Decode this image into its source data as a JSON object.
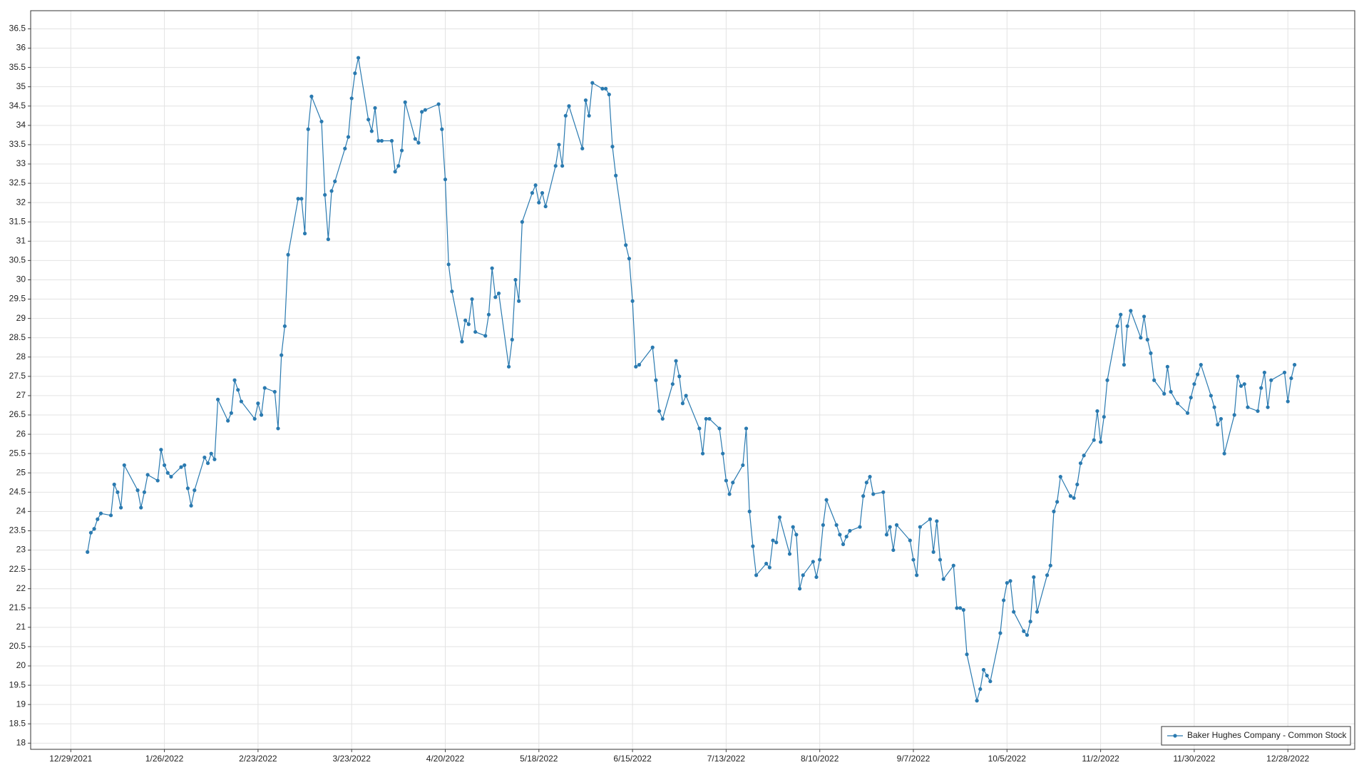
{
  "chart_data": {
    "type": "line",
    "series": [
      {
        "name": "Baker Hughes Company - Common Stock",
        "color": "#2a7ab0",
        "x": [
          "1/3/2022",
          "1/4/2022",
          "1/5/2022",
          "1/6/2022",
          "1/7/2022",
          "1/10/2022",
          "1/11/2022",
          "1/12/2022",
          "1/13/2022",
          "1/14/2022",
          "1/18/2022",
          "1/19/2022",
          "1/20/2022",
          "1/21/2022",
          "1/24/2022",
          "1/25/2022",
          "1/26/2022",
          "1/27/2022",
          "1/28/2022",
          "1/31/2022",
          "2/1/2022",
          "2/2/2022",
          "2/3/2022",
          "2/4/2022",
          "2/7/2022",
          "2/8/2022",
          "2/9/2022",
          "2/10/2022",
          "2/11/2022",
          "2/14/2022",
          "2/15/2022",
          "2/16/2022",
          "2/17/2022",
          "2/18/2022",
          "2/22/2022",
          "2/23/2022",
          "2/24/2022",
          "2/25/2022",
          "2/28/2022",
          "3/1/2022",
          "3/2/2022",
          "3/3/2022",
          "3/4/2022",
          "3/7/2022",
          "3/8/2022",
          "3/9/2022",
          "3/10/2022",
          "3/11/2022",
          "3/14/2022",
          "3/15/2022",
          "3/16/2022",
          "3/17/2022",
          "3/18/2022",
          "3/21/2022",
          "3/22/2022",
          "3/23/2022",
          "3/24/2022",
          "3/25/2022",
          "3/28/2022",
          "3/29/2022",
          "3/30/2022",
          "3/31/2022",
          "4/1/2022",
          "4/4/2022",
          "4/5/2022",
          "4/6/2022",
          "4/7/2022",
          "4/8/2022",
          "4/11/2022",
          "4/12/2022",
          "4/13/2022",
          "4/14/2022",
          "4/18/2022",
          "4/19/2022",
          "4/20/2022",
          "4/21/2022",
          "4/22/2022",
          "4/25/2022",
          "4/26/2022",
          "4/27/2022",
          "4/28/2022",
          "4/29/2022",
          "5/2/2022",
          "5/3/2022",
          "5/4/2022",
          "5/5/2022",
          "5/6/2022",
          "5/9/2022",
          "5/10/2022",
          "5/11/2022",
          "5/12/2022",
          "5/13/2022",
          "5/16/2022",
          "5/17/2022",
          "5/18/2022",
          "5/19/2022",
          "5/20/2022",
          "5/23/2022",
          "5/24/2022",
          "5/25/2022",
          "5/26/2022",
          "5/27/2022",
          "5/31/2022",
          "6/1/2022",
          "6/2/2022",
          "6/3/2022",
          "6/6/2022",
          "6/7/2022",
          "6/8/2022",
          "6/9/2022",
          "6/10/2022",
          "6/13/2022",
          "6/14/2022",
          "6/15/2022",
          "6/16/2022",
          "6/17/2022",
          "6/21/2022",
          "6/22/2022",
          "6/23/2022",
          "6/24/2022",
          "6/27/2022",
          "6/28/2022",
          "6/29/2022",
          "6/30/2022",
          "7/1/2022",
          "7/5/2022",
          "7/6/2022",
          "7/7/2022",
          "7/8/2022",
          "7/11/2022",
          "7/12/2022",
          "7/13/2022",
          "7/14/2022",
          "7/15/2022",
          "7/18/2022",
          "7/19/2022",
          "7/20/2022",
          "7/21/2022",
          "7/22/2022",
          "7/25/2022",
          "7/26/2022",
          "7/27/2022",
          "7/28/2022",
          "7/29/2022",
          "8/1/2022",
          "8/2/2022",
          "8/3/2022",
          "8/4/2022",
          "8/5/2022",
          "8/8/2022",
          "8/9/2022",
          "8/10/2022",
          "8/11/2022",
          "8/12/2022",
          "8/15/2022",
          "8/16/2022",
          "8/17/2022",
          "8/18/2022",
          "8/19/2022",
          "8/22/2022",
          "8/23/2022",
          "8/24/2022",
          "8/25/2022",
          "8/26/2022",
          "8/29/2022",
          "8/30/2022",
          "8/31/2022",
          "9/1/2022",
          "9/2/2022",
          "9/6/2022",
          "9/7/2022",
          "9/8/2022",
          "9/9/2022",
          "9/12/2022",
          "9/13/2022",
          "9/14/2022",
          "9/15/2022",
          "9/16/2022",
          "9/19/2022",
          "9/20/2022",
          "9/21/2022",
          "9/22/2022",
          "9/23/2022",
          "9/26/2022",
          "9/27/2022",
          "9/28/2022",
          "9/29/2022",
          "9/30/2022",
          "10/3/2022",
          "10/4/2022",
          "10/5/2022",
          "10/6/2022",
          "10/7/2022",
          "10/10/2022",
          "10/11/2022",
          "10/12/2022",
          "10/13/2022",
          "10/14/2022",
          "10/17/2022",
          "10/18/2022",
          "10/19/2022",
          "10/20/2022",
          "10/21/2022",
          "10/24/2022",
          "10/25/2022",
          "10/26/2022",
          "10/27/2022",
          "10/28/2022",
          "10/31/2022",
          "11/1/2022",
          "11/2/2022",
          "11/3/2022",
          "11/4/2022",
          "11/7/2022",
          "11/8/2022",
          "11/9/2022",
          "11/10/2022",
          "11/11/2022",
          "11/14/2022",
          "11/15/2022",
          "11/16/2022",
          "11/17/2022",
          "11/18/2022",
          "11/21/2022",
          "11/22/2022",
          "11/23/2022",
          "11/25/2022",
          "11/28/2022",
          "11/29/2022",
          "11/30/2022",
          "12/1/2022",
          "12/2/2022",
          "12/5/2022",
          "12/6/2022",
          "12/7/2022",
          "12/8/2022",
          "12/9/2022",
          "12/12/2022",
          "12/13/2022",
          "12/14/2022",
          "12/15/2022",
          "12/16/2022",
          "12/19/2022",
          "12/20/2022",
          "12/21/2022",
          "12/22/2022",
          "12/23/2022",
          "12/27/2022",
          "12/28/2022",
          "12/29/2022",
          "12/30/2022"
        ],
        "values": [
          22.95,
          23.45,
          23.55,
          23.8,
          23.95,
          23.9,
          24.7,
          24.5,
          24.1,
          25.2,
          24.55,
          24.1,
          24.5,
          24.95,
          24.8,
          25.6,
          25.2,
          25.0,
          24.9,
          25.15,
          25.2,
          24.6,
          24.15,
          24.55,
          25.4,
          25.25,
          25.5,
          25.35,
          26.9,
          26.35,
          26.55,
          27.4,
          27.15,
          26.85,
          26.4,
          26.8,
          26.5,
          27.2,
          27.1,
          26.15,
          28.05,
          28.8,
          30.65,
          32.1,
          32.1,
          31.2,
          33.9,
          34.75,
          34.1,
          32.2,
          31.05,
          32.3,
          32.55,
          33.4,
          33.7,
          34.7,
          35.35,
          35.75,
          34.15,
          33.85,
          34.45,
          33.6,
          33.6,
          33.6,
          32.8,
          32.95,
          33.35,
          34.6,
          33.65,
          33.55,
          34.35,
          34.4,
          34.55,
          33.9,
          32.6,
          30.4,
          29.7,
          28.4,
          28.95,
          28.85,
          29.5,
          28.65,
          28.55,
          29.1,
          30.3,
          29.55,
          29.65,
          27.75,
          28.45,
          30.0,
          29.45,
          31.5,
          32.25,
          32.45,
          32.0,
          32.25,
          31.9,
          32.95,
          33.5,
          32.95,
          34.25,
          34.5,
          33.4,
          34.65,
          34.25,
          35.1,
          34.95,
          34.95,
          34.8,
          33.45,
          32.7,
          30.9,
          30.55,
          29.45,
          27.75,
          27.8,
          28.25,
          27.4,
          26.6,
          26.4,
          27.3,
          27.9,
          27.5,
          26.8,
          27.0,
          26.15,
          25.5,
          26.4,
          26.4,
          26.15,
          25.5,
          24.8,
          24.45,
          24.75,
          25.2,
          26.15,
          24.0,
          23.1,
          22.35,
          22.65,
          22.55,
          23.25,
          23.2,
          23.85,
          22.9,
          23.6,
          23.4,
          22.0,
          22.35,
          22.7,
          22.3,
          22.75,
          23.65,
          24.3,
          23.65,
          23.4,
          23.15,
          23.35,
          23.5,
          23.6,
          24.4,
          24.75,
          24.9,
          24.45,
          24.5,
          23.4,
          23.6,
          23.0,
          23.65,
          23.25,
          22.75,
          22.35,
          23.6,
          23.8,
          22.95,
          23.75,
          22.75,
          22.25,
          22.6,
          21.5,
          21.5,
          21.45,
          20.3,
          19.1,
          19.4,
          19.9,
          19.75,
          19.6,
          20.85,
          21.7,
          22.15,
          22.2,
          21.4,
          20.9,
          20.8,
          21.15,
          22.3,
          21.4,
          22.35,
          22.6,
          24.0,
          24.25,
          24.9,
          24.4,
          24.35,
          24.7,
          25.25,
          25.45,
          25.85,
          26.6,
          25.8,
          26.45,
          27.4,
          28.8,
          29.1,
          27.8,
          28.8,
          29.2,
          28.5,
          29.05,
          28.45,
          28.1,
          27.4,
          27.05,
          27.75,
          27.1,
          26.8,
          26.55,
          26.95,
          27.3,
          27.55,
          27.8,
          27.0,
          26.7,
          26.25,
          26.4,
          25.5,
          26.5,
          27.5,
          27.25,
          27.3,
          26.7,
          26.6,
          27.2,
          27.6,
          26.7,
          27.4,
          27.6,
          26.85,
          27.45,
          27.8
        ]
      }
    ],
    "xlim": [
      "12/17/2021",
      "1/17/2023"
    ],
    "xticks": [
      "12/29/2021",
      "1/26/2022",
      "2/23/2022",
      "3/23/2022",
      "4/20/2022",
      "5/18/2022",
      "6/15/2022",
      "7/13/2022",
      "8/10/2022",
      "9/7/2022",
      "10/5/2022",
      "11/2/2022",
      "11/30/2022",
      "12/28/2022"
    ],
    "ylim": [
      17.84,
      36.97
    ],
    "yticks": [
      18,
      18.5,
      19,
      19.5,
      20,
      20.5,
      21,
      21.5,
      22,
      22.5,
      23,
      23.5,
      24,
      24.5,
      25,
      25.5,
      26,
      26.5,
      27,
      27.5,
      28,
      28.5,
      29,
      29.5,
      30,
      30.5,
      31,
      31.5,
      32,
      32.5,
      33,
      33.5,
      34,
      34.5,
      35,
      35.5,
      36,
      36.5
    ],
    "grid": true,
    "legend": "lower right"
  }
}
